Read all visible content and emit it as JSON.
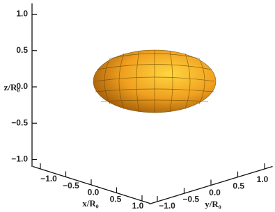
{
  "chart_data": {
    "type": "surface3d",
    "x_label": "x/R₀",
    "y_label": "y/R₀",
    "z_label": "z/R₀",
    "xlim": [
      -1.15,
      1.15
    ],
    "ylim": [
      -1.15,
      1.15
    ],
    "zlim": [
      -1.1,
      1.15
    ],
    "xticks": [
      {
        "value": -1,
        "label": "−1.0"
      },
      {
        "value": -0.5,
        "label": "−0.5"
      },
      {
        "value": 0,
        "label": "0.0"
      },
      {
        "value": 0.5,
        "label": "0.5"
      },
      {
        "value": 1,
        "label": "1.0"
      }
    ],
    "yticks": [
      {
        "value": -1,
        "label": "−1.0"
      },
      {
        "value": -0.5,
        "label": "−0.5"
      },
      {
        "value": 0,
        "label": "0.0"
      },
      {
        "value": 0.5,
        "label": "0.5"
      },
      {
        "value": 1,
        "label": "1.0"
      }
    ],
    "zticks": [
      {
        "value": -1,
        "label": "−1.0"
      },
      {
        "value": -0.5,
        "label": "−0.5"
      },
      {
        "value": 0,
        "label": "0.0"
      },
      {
        "value": 0.5,
        "label": "0.5"
      },
      {
        "value": 1,
        "label": "1.0"
      }
    ],
    "color": "#f0a020"
  }
}
